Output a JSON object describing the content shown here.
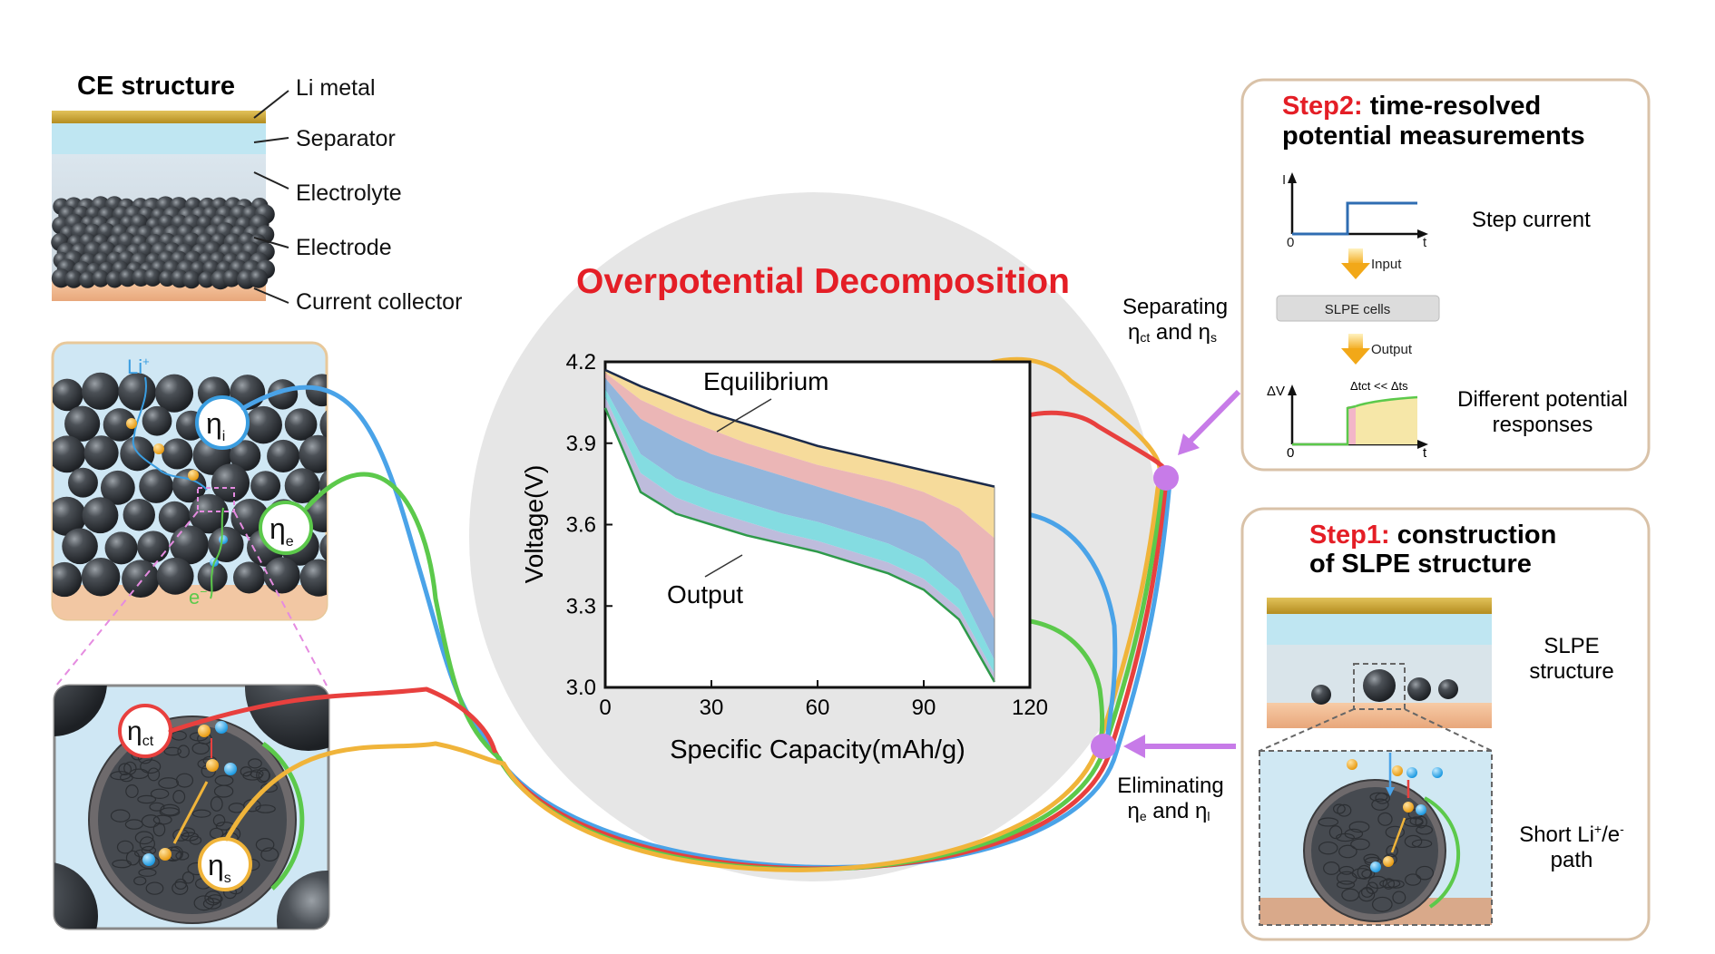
{
  "ce_structure": {
    "title": "CE structure",
    "layers": [
      "Li metal",
      "Separator",
      "Electrolyte",
      "Electrode",
      "Current collector"
    ]
  },
  "symbols": {
    "eta": "η",
    "eta_i_sub": "i",
    "eta_e_sub": "e",
    "eta_ct_sub": "ct",
    "eta_s_sub": "s",
    "li_plus": "Li",
    "plus": "+",
    "e_minus": "e",
    "minus": "−"
  },
  "center": {
    "title": "Overpotential Decomposition",
    "separating_label_1": "Separating",
    "separating_label_2_parts": [
      "η",
      "ct",
      " and η",
      "s"
    ],
    "eliminating_label_1": "Eliminating",
    "eliminating_label_2_parts": [
      "η",
      "e",
      " and η",
      "l"
    ]
  },
  "chart_data": {
    "type": "area",
    "xlabel": "Specific Capacity(mAh/g)",
    "ylabel": "Voltage(V)",
    "xlim": [
      0,
      120
    ],
    "ylim": [
      3.0,
      4.2
    ],
    "xticks": [
      "0",
      "30",
      "60",
      "90",
      "120"
    ],
    "yticks": [
      "3.0",
      "3.3",
      "3.6",
      "3.9",
      "4.2"
    ],
    "annotations": [
      "Equilibrium",
      "Output"
    ],
    "x": [
      0,
      10,
      20,
      30,
      40,
      50,
      60,
      70,
      80,
      90,
      100,
      110
    ],
    "series": [
      {
        "color": "#f5d58a",
        "values": [
          4.17,
          4.11,
          4.06,
          4.01,
          3.97,
          3.93,
          3.89,
          3.86,
          3.83,
          3.8,
          3.77,
          3.74
        ]
      },
      {
        "color": "#e8a9a9",
        "values": [
          4.16,
          4.06,
          4.0,
          3.95,
          3.9,
          3.86,
          3.82,
          3.79,
          3.76,
          3.72,
          3.66,
          3.55
        ]
      },
      {
        "color": "#7fa9d6",
        "values": [
          4.14,
          3.99,
          3.92,
          3.86,
          3.82,
          3.78,
          3.74,
          3.7,
          3.66,
          3.61,
          3.5,
          3.25
        ]
      },
      {
        "color": "#6fd6dc",
        "values": [
          4.1,
          3.86,
          3.77,
          3.72,
          3.68,
          3.64,
          3.61,
          3.57,
          3.53,
          3.47,
          3.36,
          3.1
        ]
      },
      {
        "color": "#b3b0d6",
        "values": [
          4.07,
          3.79,
          3.7,
          3.65,
          3.61,
          3.57,
          3.54,
          3.5,
          3.46,
          3.4,
          3.29,
          3.05
        ]
      },
      {
        "color": "#8fd49b",
        "values": [
          4.03,
          3.72,
          3.64,
          3.6,
          3.56,
          3.53,
          3.5,
          3.46,
          3.42,
          3.36,
          3.25,
          3.02
        ]
      }
    ]
  },
  "step2": {
    "title_red": "Step2:",
    "title_line1": "time-resolved",
    "title_line2": "potential measurements",
    "axis_i": "I",
    "axis_t": "t",
    "axis_zero": "0",
    "step_current": "Step current",
    "input": "Input",
    "slpe_cells": "SLPE cells",
    "output": "Output",
    "delta_v": "ΔV",
    "delta_t": "Δtct << Δts",
    "different_1": "Different potential",
    "different_2": "responses"
  },
  "step1": {
    "title_red": "Step1:",
    "title_line1": "construction",
    "title_line2": "of SLPE structure",
    "slpe_1": "SLPE",
    "slpe_2": "structure",
    "short_1": "Short Li",
    "short_sup1": "+",
    "short_mid": "/e",
    "short_sup2": "-",
    "short_2": "path"
  },
  "colors": {
    "blue_wire": "#4aa3e8",
    "green_wire": "#5cc94b",
    "red_wire": "#e8403e",
    "orange_wire": "#f0b43a",
    "purple_node": "#c77be8",
    "title_red": "#e41e26"
  }
}
